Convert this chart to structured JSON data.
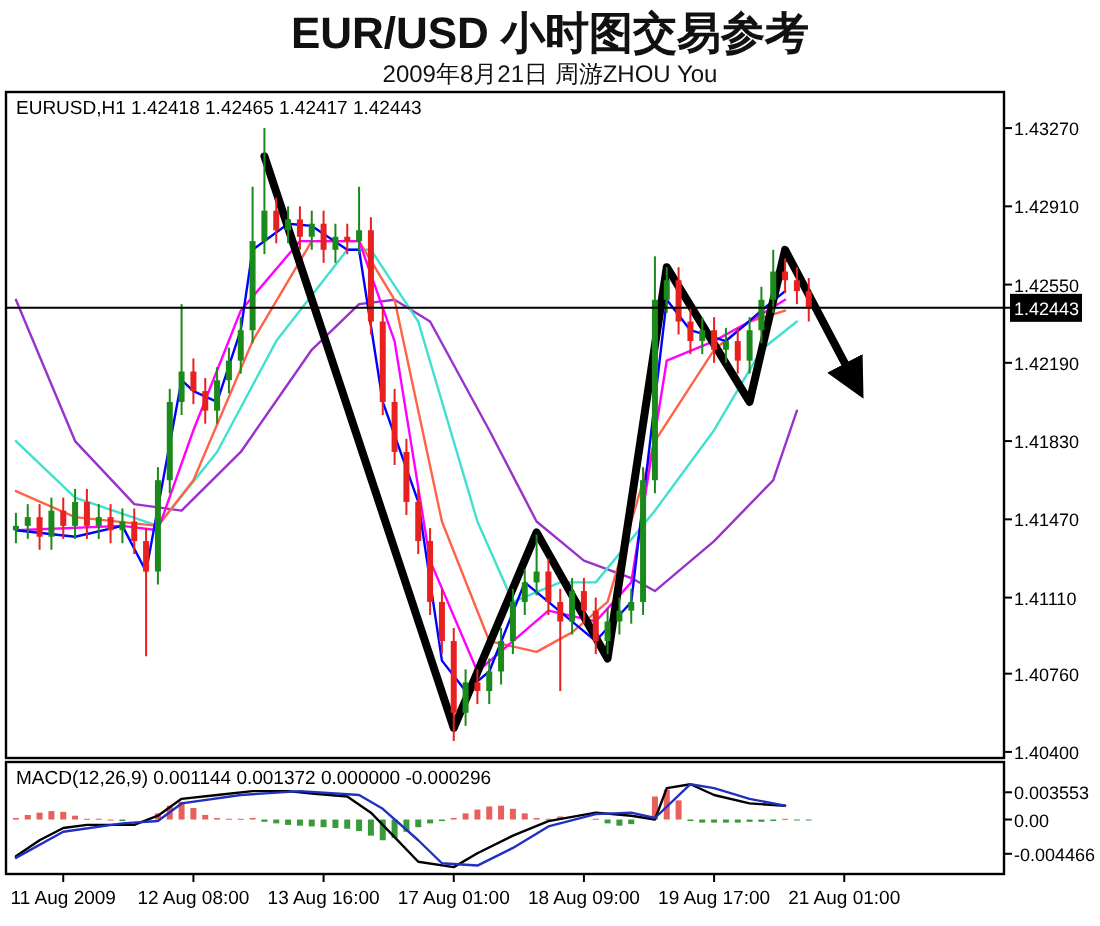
{
  "chart_data": [
    {
      "type": "candlestick",
      "title": "EUR/USD 小时图交易参考",
      "subtitle": "2009年8月21日 周游ZHOU You",
      "annotations": [
        "EURUSD,H1 1.42418 1.42465 1.42417 1.42443"
      ],
      "categories": [
        null,
        null,
        null,
        null,
        null,
        null,
        null,
        null,
        null,
        null,
        null,
        null,
        null,
        null,
        null,
        null,
        null,
        null,
        null,
        null,
        null,
        null,
        null,
        null,
        null,
        null,
        null,
        null,
        null,
        null,
        null,
        null,
        null,
        null,
        null,
        null,
        null,
        null,
        null,
        null,
        null,
        null,
        null,
        null,
        null,
        null,
        null,
        null,
        null,
        null,
        null,
        null,
        null,
        null,
        null,
        null,
        null,
        null,
        null,
        null,
        null,
        null,
        null,
        null,
        null,
        null,
        null,
        null,
        null,
        null,
        null,
        null,
        null,
        null,
        null,
        null,
        null,
        null,
        null,
        null,
        null,
        null,
        null,
        null
      ],
      "ohlc": [
        [
          1.4142,
          1.415,
          1.4136,
          1.4144
        ],
        [
          1.4144,
          1.4154,
          1.4138,
          1.4148
        ],
        [
          1.4148,
          1.4154,
          1.4133,
          1.4139
        ],
        [
          1.4139,
          1.4157,
          1.4133,
          1.4151
        ],
        [
          1.4151,
          1.4157,
          1.4138,
          1.4144
        ],
        [
          1.4144,
          1.4161,
          1.4138,
          1.4155
        ],
        [
          1.4155,
          1.4161,
          1.4138,
          1.4144
        ],
        [
          1.4144,
          1.4154,
          1.4138,
          1.4148
        ],
        [
          1.4148,
          1.4154,
          1.4136,
          1.4142
        ],
        [
          1.4142,
          1.4152,
          1.4136,
          1.4146
        ],
        [
          1.4146,
          1.4152,
          1.4131,
          1.4137
        ],
        [
          1.4137,
          1.4143,
          1.4084,
          1.4123
        ],
        [
          1.4123,
          1.4171,
          1.4117,
          1.4165
        ],
        [
          1.4165,
          1.4207,
          1.4159,
          1.4201
        ],
        [
          1.4201,
          1.4246,
          1.4195,
          1.4215
        ],
        [
          1.4215,
          1.4221,
          1.42,
          1.4206
        ],
        [
          1.4206,
          1.4212,
          1.4191,
          1.4197
        ],
        [
          1.4197,
          1.4217,
          1.4191,
          1.4211
        ],
        [
          1.4211,
          1.4226,
          1.4205,
          1.422
        ],
        [
          1.422,
          1.424,
          1.4214,
          1.4234
        ],
        [
          1.4234,
          1.43,
          1.4228,
          1.4275
        ],
        [
          1.4275,
          1.4327,
          1.4269,
          1.4289
        ],
        [
          1.4289,
          1.4295,
          1.4274,
          1.428
        ],
        [
          1.428,
          1.4291,
          1.4274,
          1.4285
        ],
        [
          1.4285,
          1.4291,
          1.4271,
          1.4277
        ],
        [
          1.4277,
          1.4289,
          1.4271,
          1.4283
        ],
        [
          1.4283,
          1.4289,
          1.4265,
          1.4271
        ],
        [
          1.4271,
          1.4283,
          1.4265,
          1.4277
        ],
        [
          1.4277,
          1.4283,
          1.4269,
          1.4275
        ],
        [
          1.4275,
          1.43,
          1.4269,
          1.428
        ],
        [
          1.428,
          1.4286,
          1.4232,
          1.4238
        ],
        [
          1.4238,
          1.4244,
          1.4195,
          1.4201
        ],
        [
          1.4201,
          1.4207,
          1.4172,
          1.4178
        ],
        [
          1.4178,
          1.4184,
          1.4149,
          1.4155
        ],
        [
          1.4155,
          1.4161,
          1.4131,
          1.4137
        ],
        [
          1.4137,
          1.4143,
          1.4103,
          1.4109
        ],
        [
          1.4109,
          1.4115,
          1.4085,
          1.4091
        ],
        [
          1.4091,
          1.4097,
          1.4045,
          1.4058
        ],
        [
          1.4058,
          1.4078,
          1.4052,
          1.4072
        ],
        [
          1.4072,
          1.4078,
          1.4062,
          1.4068
        ],
        [
          1.4068,
          1.4083,
          1.4062,
          1.4077
        ],
        [
          1.4077,
          1.4097,
          1.4071,
          1.4091
        ],
        [
          1.4091,
          1.4115,
          1.4085,
          1.4109
        ],
        [
          1.4109,
          1.4124,
          1.4103,
          1.4118
        ],
        [
          1.4118,
          1.414,
          1.4112,
          1.4123
        ],
        [
          1.4123,
          1.4129,
          1.4103,
          1.4109
        ],
        [
          1.4109,
          1.4115,
          1.4068,
          1.41
        ],
        [
          1.41,
          1.412,
          1.4094,
          1.4114
        ],
        [
          1.4114,
          1.412,
          1.4099,
          1.4105
        ],
        [
          1.4105,
          1.4111,
          1.4085,
          1.4091
        ],
        [
          1.4091,
          1.4106,
          1.4085,
          1.41
        ],
        [
          1.41,
          1.4111,
          1.4094,
          1.4105
        ],
        [
          1.4105,
          1.4115,
          1.4099,
          1.4109
        ],
        [
          1.4109,
          1.4171,
          1.4103,
          1.4165
        ],
        [
          1.4165,
          1.4268,
          1.4159,
          1.4248
        ],
        [
          1.4248,
          1.4263,
          1.4242,
          1.4257
        ],
        [
          1.4257,
          1.4263,
          1.4232,
          1.4238
        ],
        [
          1.4238,
          1.4244,
          1.4223,
          1.4229
        ],
        [
          1.4229,
          1.424,
          1.4223,
          1.4234
        ],
        [
          1.4234,
          1.424,
          1.4219,
          1.4225
        ],
        [
          1.4225,
          1.4235,
          1.4219,
          1.4229
        ],
        [
          1.4229,
          1.4235,
          1.4214,
          1.422
        ],
        [
          1.422,
          1.424,
          1.4214,
          1.4234
        ],
        [
          1.4234,
          1.4254,
          1.4228,
          1.4248
        ],
        [
          1.4248,
          1.4271,
          1.4242,
          1.4261
        ],
        [
          1.4261,
          1.4267,
          1.4251,
          1.4257
        ],
        [
          1.4257,
          1.4263,
          1.4246,
          1.4252
        ],
        [
          1.4252,
          1.4258,
          1.4238,
          1.4244
        ],
        null,
        null,
        null,
        null,
        null,
        null,
        null,
        null,
        null,
        null,
        null,
        null,
        null,
        null,
        null,
        null
      ],
      "series": [
        {
          "type": "line",
          "color": "#9932cc",
          "values": [
            1.4248,
            null,
            null,
            null,
            null,
            1.4183,
            null,
            null,
            null,
            null,
            1.4154,
            null,
            null,
            null,
            1.4151,
            null,
            null,
            null,
            null,
            1.4178,
            null,
            null,
            null,
            null,
            null,
            1.4225,
            null,
            null,
            null,
            1.4246,
            null,
            null,
            1.4248,
            null,
            null,
            1.4238,
            null,
            null,
            null,
            null,
            1.4188,
            null,
            null,
            null,
            1.4146,
            null,
            null,
            null,
            1.4128,
            null,
            null,
            null,
            1.412,
            null,
            1.4114,
            null,
            null,
            null,
            null,
            1.4137,
            null,
            null,
            null,
            null,
            1.4165,
            null,
            1.4197,
            null,
            null,
            null,
            null,
            null,
            null,
            null,
            null,
            null,
            null,
            null,
            null,
            null,
            null,
            null,
            null,
            null
          ]
        },
        {
          "type": "line",
          "color": "#40e0d0",
          "values": [
            1.4183,
            null,
            null,
            null,
            null,
            1.4157,
            null,
            null,
            null,
            null,
            null,
            null,
            1.4144,
            null,
            null,
            null,
            null,
            1.4178,
            null,
            null,
            null,
            null,
            1.4229,
            null,
            null,
            null,
            null,
            null,
            1.4271,
            null,
            1.4271,
            null,
            null,
            null,
            1.4238,
            null,
            null,
            null,
            null,
            1.4146,
            null,
            null,
            1.4109,
            null,
            null,
            null,
            1.4118,
            null,
            null,
            1.4118,
            null,
            null,
            null,
            null,
            1.4151,
            null,
            null,
            null,
            null,
            1.4188,
            null,
            null,
            null,
            1.4225,
            null,
            null,
            1.4238,
            null,
            null,
            null,
            null,
            null,
            null,
            null,
            null,
            null,
            null,
            null,
            null,
            null,
            null,
            null,
            null,
            null
          ]
        },
        {
          "type": "line",
          "color": "#ff6347",
          "values": [
            1.416,
            null,
            null,
            null,
            null,
            1.4148,
            null,
            null,
            null,
            null,
            null,
            null,
            1.4144,
            null,
            null,
            1.4165,
            null,
            null,
            null,
            null,
            1.4229,
            null,
            null,
            null,
            null,
            1.4275,
            null,
            null,
            null,
            1.4275,
            null,
            null,
            1.4248,
            null,
            null,
            null,
            1.4146,
            null,
            null,
            null,
            1.4091,
            null,
            null,
            null,
            1.4086,
            null,
            null,
            1.4095,
            null,
            null,
            1.4109,
            null,
            null,
            null,
            1.4183,
            null,
            null,
            null,
            null,
            1.4225,
            null,
            null,
            1.4238,
            null,
            null,
            1.4243,
            null,
            null,
            null,
            null,
            null,
            null,
            null,
            null,
            null,
            null,
            null,
            null,
            null,
            null,
            null,
            null,
            null,
            null
          ]
        },
        {
          "type": "line",
          "color": "#ff00ff",
          "values": [
            1.4142,
            null,
            null,
            null,
            null,
            null,
            null,
            null,
            null,
            1.4144,
            null,
            null,
            1.4142,
            null,
            null,
            1.4188,
            null,
            null,
            null,
            1.4243,
            null,
            null,
            null,
            null,
            1.4275,
            null,
            null,
            null,
            null,
            1.4275,
            null,
            null,
            1.4229,
            null,
            null,
            1.4128,
            null,
            null,
            null,
            1.4077,
            null,
            null,
            1.4091,
            null,
            null,
            1.4105,
            null,
            null,
            null,
            1.41,
            null,
            null,
            1.4118,
            null,
            null,
            1.422,
            null,
            null,
            null,
            1.4229,
            null,
            null,
            1.4238,
            null,
            null,
            1.4248,
            null,
            null,
            null,
            null,
            null,
            null,
            null,
            null,
            null,
            null,
            null,
            null,
            null,
            null,
            null,
            null,
            null,
            null
          ]
        },
        {
          "type": "line",
          "color": "#0000ff",
          "values": [
            1.4142,
            null,
            null,
            null,
            null,
            1.4139,
            null,
            null,
            null,
            1.4144,
            null,
            1.4123,
            null,
            null,
            1.4211,
            1.4206,
            null,
            1.4201,
            null,
            1.4234,
            1.4271,
            null,
            null,
            1.4283,
            null,
            1.4282,
            null,
            null,
            1.4271,
            1.4271,
            null,
            1.4201,
            null,
            null,
            1.4155,
            null,
            1.4082,
            null,
            1.4068,
            null,
            1.4077,
            null,
            null,
            1.4118,
            null,
            1.4109,
            null,
            null,
            null,
            1.4091,
            null,
            null,
            1.4109,
            null,
            null,
            1.4248,
            null,
            1.4234,
            null,
            null,
            1.4229,
            null,
            null,
            1.4243,
            null,
            1.4252,
            null,
            null,
            null,
            null,
            null,
            null,
            null,
            null,
            null,
            null,
            null,
            null,
            null,
            null,
            null,
            null,
            null,
            null
          ]
        },
        {
          "type": "line",
          "color": "#000000",
          "values": [
            null,
            null,
            null,
            null,
            null,
            null,
            null,
            null,
            null,
            null,
            null,
            null,
            null,
            null,
            null,
            null,
            null,
            null,
            null,
            null,
            null,
            1.4314,
            null,
            null,
            null,
            null,
            null,
            null,
            null,
            null,
            null,
            null,
            null,
            null,
            null,
            null,
            null,
            1.4051,
            null,
            null,
            null,
            null,
            null,
            null,
            1.4141,
            null,
            null,
            null,
            null,
            null,
            1.4083,
            null,
            null,
            null,
            null,
            1.4263,
            null,
            null,
            null,
            null,
            null,
            null,
            1.4201,
            null,
            null,
            1.4271,
            null,
            null,
            null,
            null,
            null,
            1.4209,
            null,
            null,
            null,
            null,
            null,
            null,
            null,
            null,
            null,
            null,
            null,
            null
          ]
        }
      ],
      "ylim": [
        1.40372,
        1.43436
      ],
      "yticks": [
        {
          "value": 1.4327,
          "label": "1.43270"
        },
        {
          "value": 1.4291,
          "label": "1.42910"
        },
        {
          "value": 1.4255,
          "label": "1.42550"
        },
        {
          "value": 1.4219,
          "label": "1.42190"
        },
        {
          "value": 1.4183,
          "label": "1.41830"
        },
        {
          "value": 1.4147,
          "label": "1.41470"
        },
        {
          "value": 1.4111,
          "label": "1.41110"
        },
        {
          "value": 1.4076,
          "label": "1.40760"
        },
        {
          "value": 1.404,
          "label": "1.40400"
        }
      ],
      "ref_lines": [
        {
          "axis": "y",
          "value": 1.42443,
          "label": "1.42443",
          "color": "#000000"
        }
      ]
    },
    {
      "type": "bar",
      "annotations": [
        "MACD(12,26,9) 0.001144 0.001372 0.000000 -0.000296"
      ],
      "categories": [
        null,
        null,
        null,
        null,
        "11 Aug 2009",
        null,
        null,
        null,
        null,
        null,
        null,
        null,
        null,
        null,
        null,
        "12 Aug 08:00",
        null,
        null,
        null,
        null,
        null,
        null,
        null,
        null,
        null,
        null,
        "13 Aug 16:00",
        null,
        null,
        null,
        null,
        null,
        null,
        null,
        null,
        null,
        null,
        "17 Aug 01:00",
        null,
        null,
        null,
        null,
        null,
        null,
        null,
        null,
        null,
        null,
        "18 Aug 09:00",
        null,
        null,
        null,
        null,
        null,
        null,
        null,
        null,
        null,
        null,
        "19 Aug 17:00",
        null,
        null,
        null,
        null,
        null,
        null,
        null,
        null,
        null,
        null,
        "21 Aug 01:00",
        null,
        null,
        null,
        null,
        null,
        null,
        null,
        null,
        null,
        null,
        null,
        null,
        null
      ],
      "series": [
        {
          "type": "bar",
          "values": [
            0.0002,
            0.0006,
            0.0009,
            0.0011,
            0.001,
            0.0005,
            0.0001,
            0.0001,
            0,
            -0.0002,
            null,
            null,
            0.0008,
            0.0018,
            0.0023,
            0.0015,
            0.0006,
            0.0002,
            0.0001,
            0.0001,
            0.0002,
            -0.0003,
            -0.0005,
            -0.0007,
            -0.0008,
            -0.0009,
            -0.001,
            -0.0011,
            -0.0012,
            -0.0015,
            -0.0021,
            -0.0027,
            -0.0024,
            -0.0016,
            -0.001,
            -0.0005,
            -0.0002,
            0.0002,
            0.0008,
            0.0013,
            0.0017,
            0.0018,
            0.0014,
            0.0008,
            0.0002,
            0.0001,
            0.0004,
            null,
            null,
            0.0001,
            -0.0005,
            -0.0008,
            -0.0006,
            null,
            0.003,
            0.0039,
            0.0025,
            -0.0002,
            -0.0004,
            -0.0004,
            -0.0004,
            -0.0004,
            -0.0003,
            -0.0003,
            -0.0002,
            0.0001,
            -0.0001,
            0,
            null,
            null,
            null,
            null,
            null,
            null,
            null,
            null,
            null,
            null,
            null,
            null,
            null,
            null,
            null,
            null
          ],
          "colors": [
            "#e8605c",
            "#e8605c",
            "#e8605c",
            "#e8605c",
            "#e8605c",
            "#e8605c",
            "#e8605c",
            "#e8605c",
            "#e8605c",
            "#3a9a3a",
            null,
            null,
            "#e8605c",
            "#e8605c",
            "#e8605c",
            "#e8605c",
            "#e8605c",
            "#e8605c",
            "#e8605c",
            "#e8605c",
            "#e8605c",
            "#3a9a3a",
            "#3a9a3a",
            "#3a9a3a",
            "#3a9a3a",
            "#3a9a3a",
            "#3a9a3a",
            "#3a9a3a",
            "#3a9a3a",
            "#3a9a3a",
            "#3a9a3a",
            "#3a9a3a",
            "#3a9a3a",
            "#3a9a3a",
            "#3a9a3a",
            "#3a9a3a",
            "#3a9a3a",
            "#e8605c",
            "#e8605c",
            "#e8605c",
            "#e8605c",
            "#e8605c",
            "#e8605c",
            "#e8605c",
            "#e8605c",
            "#e8605c",
            "#e8605c",
            null,
            null,
            "#e8605c",
            "#3a9a3a",
            "#3a9a3a",
            "#3a9a3a",
            null,
            "#e8605c",
            "#e8605c",
            "#e8605c",
            "#3a9a3a",
            "#3a9a3a",
            "#3a9a3a",
            "#3a9a3a",
            "#3a9a3a",
            "#3a9a3a",
            "#3a9a3a",
            "#3a9a3a",
            "#e8605c",
            "#3a9a3a",
            "#3a9a3a",
            null,
            null,
            null,
            null,
            null,
            null,
            null,
            null,
            null,
            null,
            null,
            null,
            null,
            null,
            null,
            null
          ]
        },
        {
          "type": "line",
          "color": "#000000",
          "values": [
            -0.0048,
            null,
            -0.0027,
            null,
            -0.0011,
            null,
            -0.0007,
            null,
            null,
            null,
            -0.0007,
            null,
            0.0005,
            null,
            0.0027,
            null,
            null,
            0.0032,
            null,
            null,
            0.0037,
            null,
            null,
            0.0037,
            null,
            0.0034,
            null,
            null,
            0.003,
            null,
            0.0009,
            null,
            -0.0023,
            null,
            -0.0055,
            null,
            null,
            -0.0062,
            null,
            -0.0044,
            null,
            null,
            -0.0021,
            null,
            null,
            -0.0002,
            null,
            null,
            null,
            0.0009,
            null,
            null,
            0.0005,
            null,
            0,
            0.0041,
            null,
            0.0046,
            null,
            0.0032,
            null,
            null,
            0.0021,
            null,
            null,
            0.0018,
            null,
            null,
            null,
            null,
            null,
            null,
            null,
            null,
            null,
            null,
            null,
            null,
            null,
            null,
            null,
            null,
            null,
            null
          ]
        },
        {
          "type": "line",
          "color": "#2030c0",
          "values": [
            -0.005,
            null,
            null,
            null,
            -0.0016,
            null,
            null,
            null,
            null,
            -0.0005,
            null,
            null,
            -0.0002,
            null,
            0.0021,
            null,
            null,
            null,
            null,
            0.0032,
            null,
            null,
            null,
            null,
            0.0037,
            null,
            null,
            null,
            null,
            0.0032,
            null,
            0.0014,
            null,
            null,
            -0.0027,
            null,
            -0.0057,
            null,
            null,
            -0.006,
            null,
            null,
            -0.0037,
            null,
            null,
            -0.0009,
            null,
            null,
            null,
            0.0007,
            null,
            null,
            0.0009,
            null,
            0.0002,
            null,
            null,
            0.0046,
            null,
            0.0041,
            null,
            null,
            0.0027,
            null,
            null,
            0.0018,
            null,
            null,
            null,
            null,
            null,
            null,
            null,
            null,
            null,
            null,
            null,
            null,
            null,
            null,
            null,
            null,
            null,
            null
          ]
        }
      ],
      "ylim": [
        -0.0071,
        0.0075
      ],
      "yticks": [
        {
          "value": 0.003553,
          "label": "0.003553"
        },
        {
          "value": 0,
          "label": "0.00"
        },
        {
          "value": -0.004466,
          "label": "-0.004466"
        }
      ]
    }
  ]
}
